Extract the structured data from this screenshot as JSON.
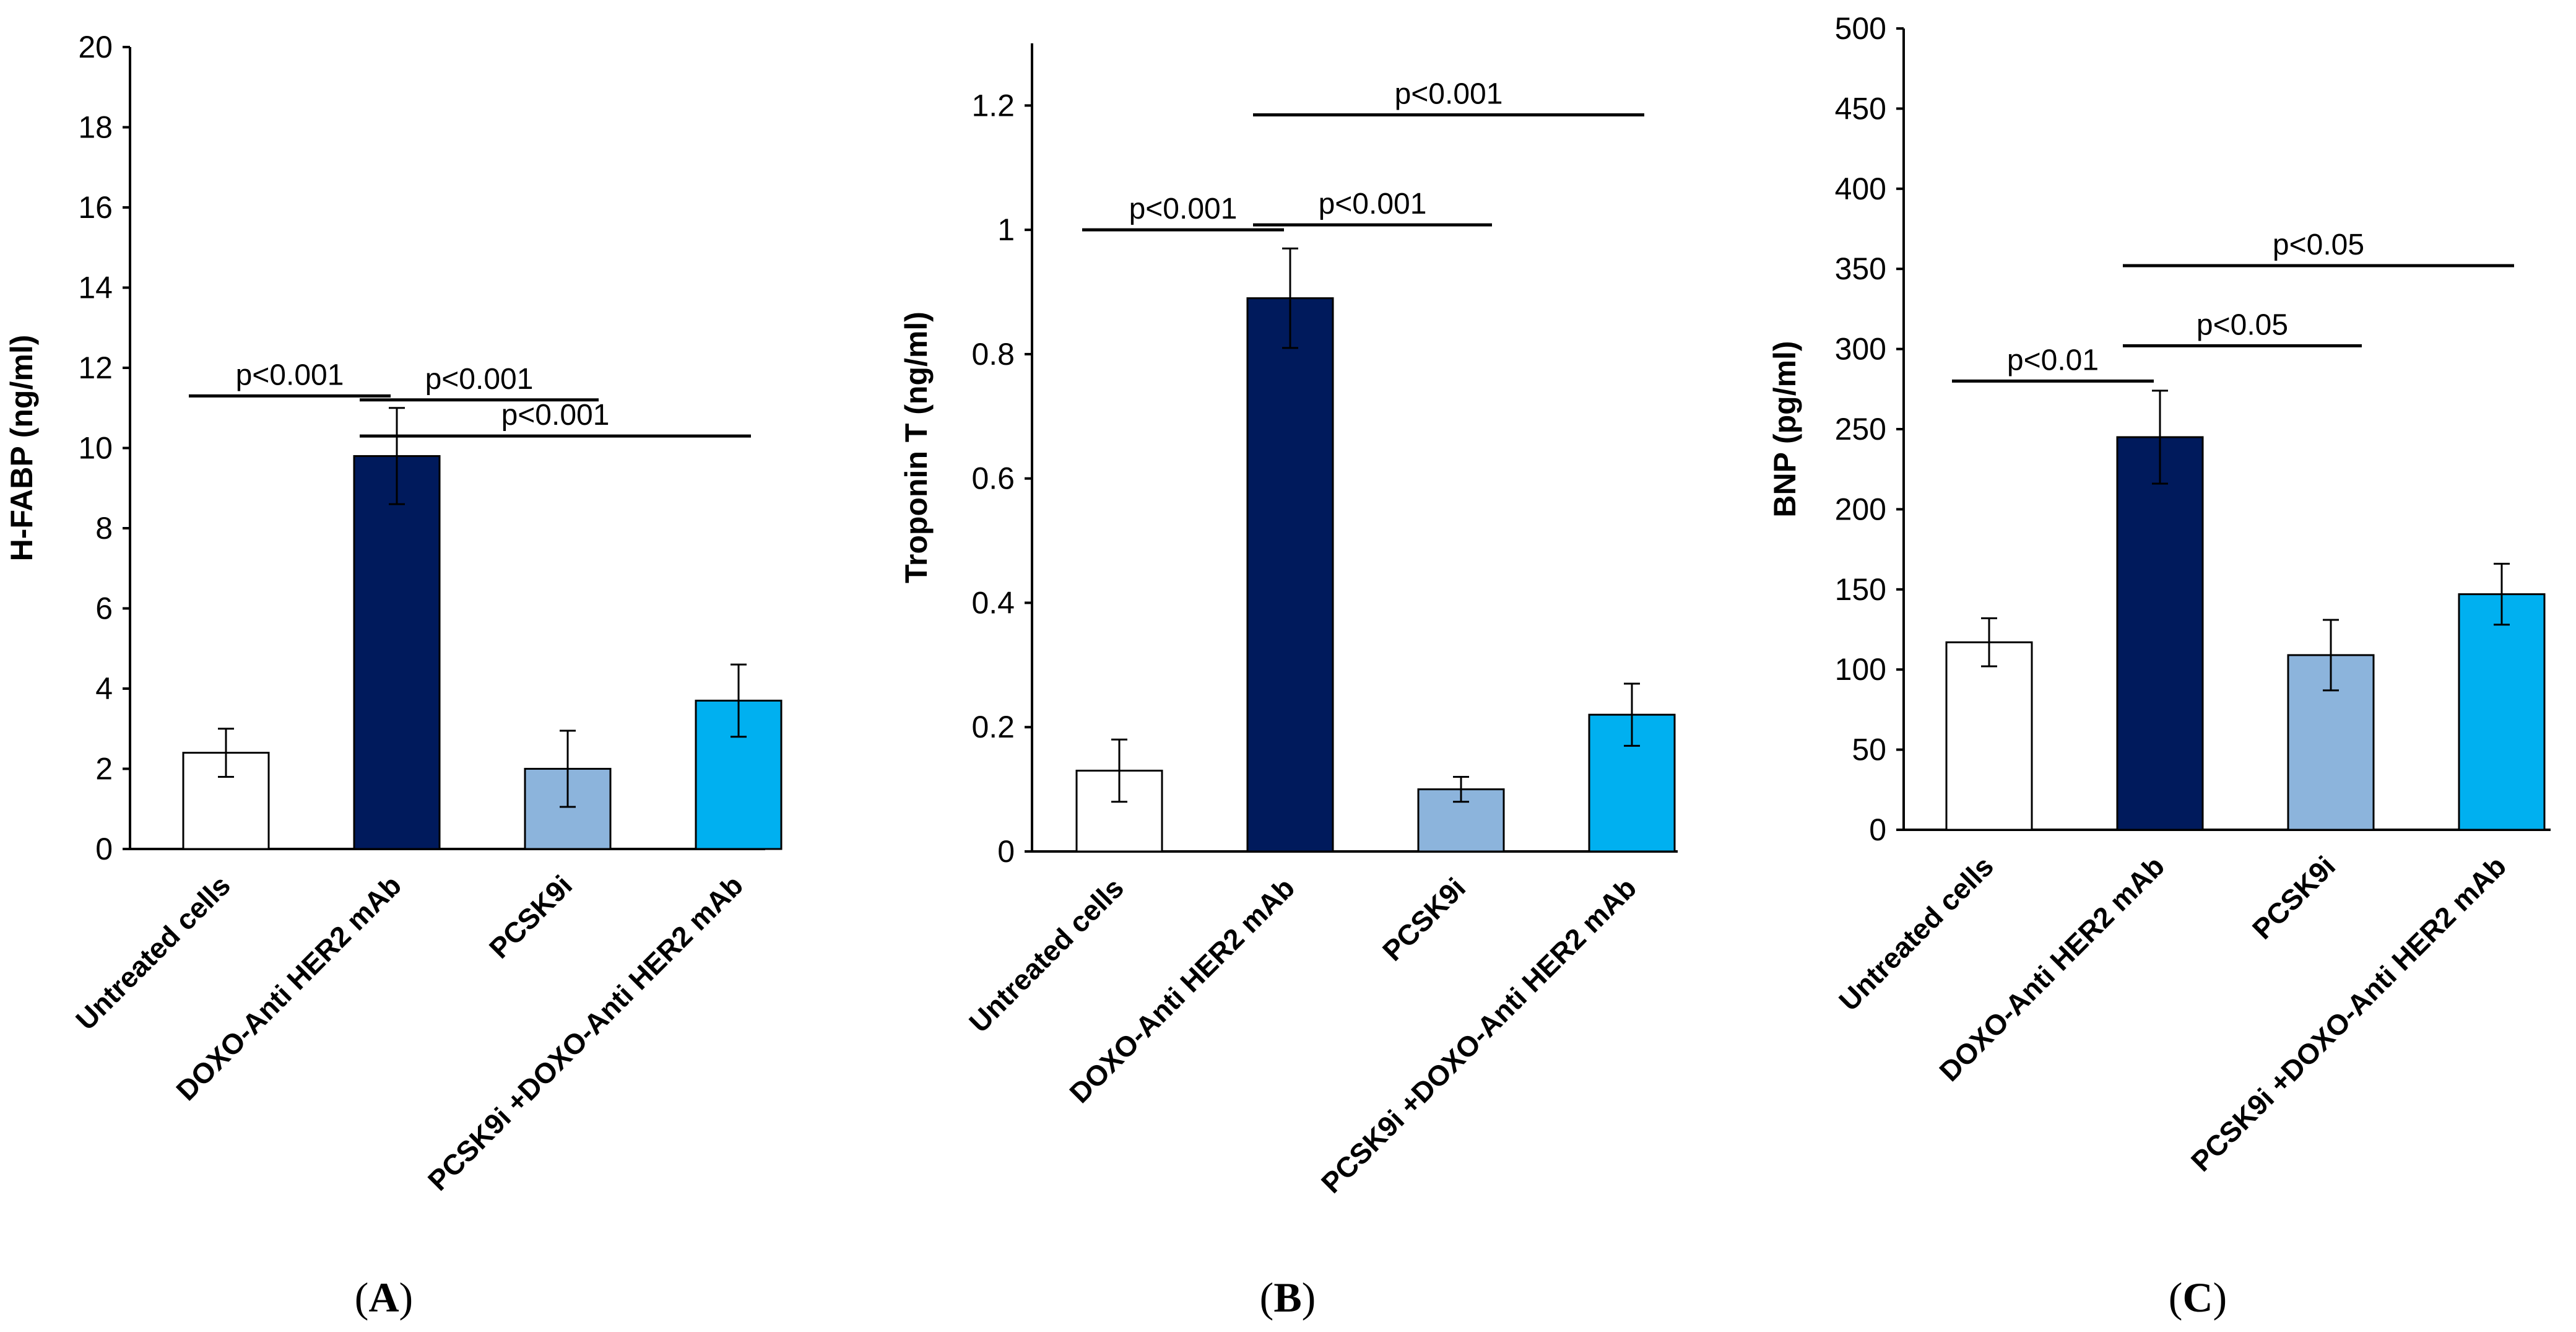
{
  "chart_data": [
    {
      "type": "bar",
      "panel_label": "A",
      "ylabel": "H-FABP (ng/ml)",
      "ylim": [
        0,
        20
      ],
      "yticks": [
        0,
        2,
        4,
        6,
        8,
        10,
        12,
        14,
        16,
        18,
        20
      ],
      "categories": [
        "Untreated cells",
        "DOXO-Anti HER2 mAb",
        "PCSK9i",
        "PCSK9i +DOXO-Anti HER2 mAb"
      ],
      "values": [
        2.4,
        9.8,
        2.0,
        3.7
      ],
      "errors": [
        0.6,
        1.2,
        0.95,
        0.9
      ],
      "significance": [
        {
          "from": 0,
          "to": 1,
          "label": "p<0.001",
          "y": 11.3
        },
        {
          "from": 1,
          "to": 2,
          "label": "p<0.001",
          "y": 11.2
        },
        {
          "from": 1,
          "to": 3,
          "label": "p<0.001",
          "y": 10.3
        }
      ]
    },
    {
      "type": "bar",
      "panel_label": "B",
      "ylabel": "Troponin T (ng/ml)",
      "ylim": [
        0,
        1.3
      ],
      "yticks": [
        0,
        0.2,
        0.4,
        0.6,
        0.8,
        1,
        1.2
      ],
      "categories": [
        "Untreated cells",
        "DOXO-Anti HER2 mAb",
        "PCSK9i",
        "PCSK9i +DOXO-Anti HER2 mAb"
      ],
      "values": [
        0.13,
        0.89,
        0.1,
        0.22
      ],
      "errors": [
        0.05,
        0.08,
        0.02,
        0.05
      ],
      "significance": [
        {
          "from": 0,
          "to": 1,
          "label": "p<0.001",
          "y": 1.0
        },
        {
          "from": 1,
          "to": 2,
          "label": "p<0.001",
          "y": 1.008
        },
        {
          "from": 1,
          "to": 3,
          "label": "p<0.001",
          "y": 1.185
        }
      ]
    },
    {
      "type": "bar",
      "panel_label": "C",
      "ylabel": "BNP  (pg/ml)",
      "ylim": [
        0,
        500
      ],
      "yticks": [
        0,
        50,
        100,
        150,
        200,
        250,
        300,
        350,
        400,
        450,
        500
      ],
      "categories": [
        "Untreated cells",
        "DOXO-Anti HER2 mAb",
        "PCSK9i",
        "PCSK9i +DOXO-Anti HER2 mAb"
      ],
      "values": [
        117,
        245,
        109,
        147
      ],
      "errors": [
        15,
        29,
        22,
        19
      ],
      "significance": [
        {
          "from": 0,
          "to": 1,
          "label": "p<0.01",
          "y": 280
        },
        {
          "from": 1,
          "to": 2,
          "label": "p<0.05",
          "y": 302
        },
        {
          "from": 1,
          "to": 3,
          "label": "p<0.05",
          "y": 352
        }
      ]
    }
  ],
  "colors": {
    "bar_fills": [
      "#ffffff",
      "#001a5c",
      "#8cb4dc",
      "#00b0f0"
    ],
    "stroke": "#000000"
  }
}
